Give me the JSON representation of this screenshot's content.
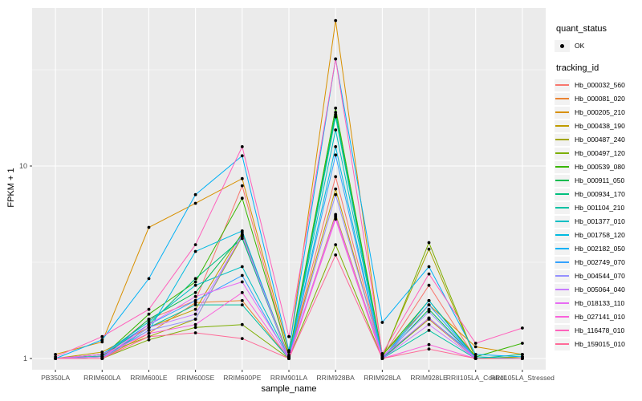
{
  "figure": {
    "xlabel": "sample_name",
    "ylabel": "FPKM + 1"
  },
  "legend": {
    "quant_status_title": "quant_status",
    "quant_status_value": "OK",
    "tracking_id_title": "tracking_id"
  },
  "chart_data": {
    "type": "line",
    "title": "",
    "xlabel": "sample_name",
    "ylabel": "FPKM + 1",
    "y_scale": "log10",
    "y_ticks": [
      1,
      10
    ],
    "y_tick_labels": [
      "1",
      "10"
    ],
    "y_minor_ticks": [
      3.1623,
      31.6228
    ],
    "ylim": [
      0.87,
      66
    ],
    "grid": true,
    "legend_position": "right",
    "panel_bg": "#EBEBEB",
    "gridline_color": "#FFFFFF",
    "point_color": "#000000",
    "axis_text_color": "#4D4D4D",
    "categories": [
      "PB350LA",
      "RRIM600LA",
      "RRIM600LE",
      "RRIM600SE",
      "RRIM600PE",
      "RRIM901LA",
      "RRIM928BA",
      "RRIM928LA",
      "RRIM928LE",
      "RRII105LA_Control",
      "RRII105LA_Stressed"
    ],
    "series": [
      {
        "name": "Hb_000032_560",
        "color": "#F8766D",
        "values": [
          1.0,
          1.02,
          1.6,
          2.0,
          7.9,
          1.02,
          8.8,
          1.02,
          2.4,
          1.0,
          1.02
        ]
      },
      {
        "name": "Hb_000081_020",
        "color": "#EA8331",
        "values": [
          1.0,
          1.0,
          1.35,
          1.95,
          2.0,
          1.0,
          5.5,
          1.0,
          1.62,
          1.0,
          1.0
        ]
      },
      {
        "name": "Hb_000205_210",
        "color": "#D89000",
        "values": [
          1.05,
          1.22,
          4.8,
          6.4,
          8.6,
          1.08,
          57.0,
          1.04,
          1.9,
          1.15,
          1.05
        ]
      },
      {
        "name": "Hb_000438_190",
        "color": "#C09B00",
        "values": [
          1.0,
          1.08,
          1.45,
          1.8,
          4.5,
          1.02,
          7.6,
          1.0,
          1.6,
          1.0,
          1.0
        ]
      },
      {
        "name": "Hb_000487_240",
        "color": "#A3A500",
        "values": [
          1.0,
          1.05,
          1.3,
          1.6,
          4.3,
          1.0,
          5.6,
          1.02,
          3.7,
          1.0,
          1.02
        ]
      },
      {
        "name": "Hb_000497_120",
        "color": "#7CAE00",
        "values": [
          1.0,
          1.0,
          1.25,
          1.45,
          1.5,
          1.0,
          3.9,
          1.0,
          4.0,
          1.0,
          1.0
        ]
      },
      {
        "name": "Hb_000539_080",
        "color": "#39B600",
        "values": [
          1.0,
          1.02,
          1.7,
          2.5,
          6.8,
          1.04,
          20.0,
          1.04,
          2.0,
          1.02,
          1.2
        ]
      },
      {
        "name": "Hb_000911_050",
        "color": "#00BB4E",
        "values": [
          1.0,
          1.0,
          1.6,
          2.2,
          4.4,
          1.0,
          19.0,
          1.0,
          1.8,
          1.0,
          1.0
        ]
      },
      {
        "name": "Hb_000934_170",
        "color": "#00BF7D",
        "values": [
          1.0,
          1.03,
          1.5,
          2.6,
          4.2,
          1.0,
          18.5,
          1.0,
          1.62,
          1.0,
          1.05
        ]
      },
      {
        "name": "Hb_001104_210",
        "color": "#00C1A3",
        "values": [
          1.0,
          1.0,
          1.45,
          1.9,
          1.9,
          1.0,
          18.0,
          1.0,
          1.4,
          1.0,
          1.0
        ]
      },
      {
        "name": "Hb_001377_010",
        "color": "#00BFC4",
        "values": [
          1.0,
          1.05,
          1.55,
          2.4,
          3.0,
          1.02,
          15.4,
          1.02,
          1.62,
          1.02,
          1.0
        ]
      },
      {
        "name": "Hb_001758_120",
        "color": "#00BAE0",
        "values": [
          1.0,
          1.02,
          1.4,
          3.6,
          4.6,
          1.0,
          12.6,
          1.0,
          2.0,
          1.0,
          1.0
        ]
      },
      {
        "name": "Hb_002182_050",
        "color": "#00B0F6",
        "values": [
          1.0,
          1.25,
          2.6,
          7.1,
          11.3,
          1.1,
          36.0,
          1.54,
          3.0,
          1.05,
          1.02
        ]
      },
      {
        "name": "Hb_002749_070",
        "color": "#35A2FF",
        "values": [
          1.0,
          1.05,
          1.5,
          2.0,
          2.7,
          1.0,
          11.4,
          1.0,
          1.9,
          1.0,
          1.0
        ]
      },
      {
        "name": "Hb_004544_070",
        "color": "#9590FF",
        "values": [
          1.0,
          1.0,
          1.4,
          1.6,
          4.4,
          1.0,
          7.1,
          1.02,
          1.75,
          1.0,
          1.0
        ]
      },
      {
        "name": "Hb_005064_040",
        "color": "#C77CFF",
        "values": [
          1.0,
          1.02,
          1.45,
          1.7,
          4.35,
          1.0,
          5.4,
          1.0,
          1.5,
          1.0,
          1.0
        ]
      },
      {
        "name": "Hb_018133_110",
        "color": "#E76BF3",
        "values": [
          1.0,
          1.0,
          1.5,
          2.1,
          2.5,
          1.02,
          5.5,
          1.02,
          1.62,
          1.0,
          1.0
        ]
      },
      {
        "name": "Hb_027141_010",
        "color": "#FA62DB",
        "values": [
          1.0,
          1.05,
          1.35,
          1.5,
          2.2,
          1.0,
          5.3,
          1.0,
          1.18,
          1.0,
          1.0
        ]
      },
      {
        "name": "Hb_116478_010",
        "color": "#FF62BC",
        "values": [
          1.02,
          1.3,
          1.8,
          3.9,
          12.6,
          1.3,
          36.0,
          1.06,
          2.75,
          1.2,
          1.44
        ]
      },
      {
        "name": "Hb_159015_010",
        "color": "#FF6A98",
        "values": [
          1.0,
          1.0,
          1.3,
          1.36,
          1.27,
          1.0,
          3.45,
          1.0,
          1.12,
          1.0,
          1.0
        ]
      }
    ]
  }
}
